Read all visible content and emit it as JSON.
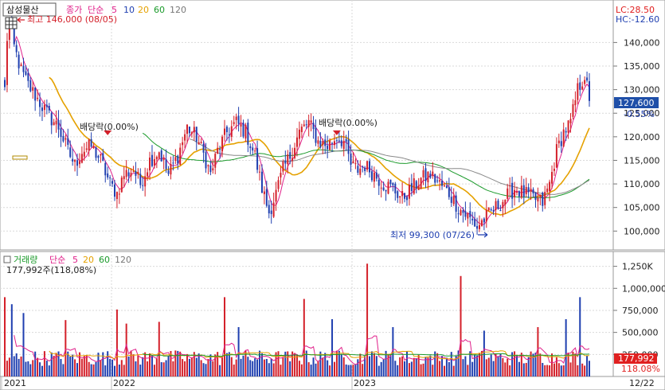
{
  "colors": {
    "up": "#d4202a",
    "down": "#1f3fb0",
    "ma5": "#e0208a",
    "ma20": "#e5a100",
    "ma60": "#1a9a2a",
    "ma120": "#888888",
    "grid": "#d9d9d9",
    "axis_bg": "#ffffff",
    "lc": "#e02020",
    "hc": "#1f3fb0",
    "current_bg": "#1f4fa8",
    "vol_tag_bg": "#e02020"
  },
  "price_panel": {
    "stock_name": "삼성물산",
    "legend": {
      "close": "종가",
      "kind": "단순",
      "periods": [
        "5",
        "10",
        "20",
        "60",
        "120"
      ]
    },
    "limits": {
      "lc": "LC:28.50",
      "hc": "HC:-12.60"
    },
    "high_note": "최고 146,000 (08/05)",
    "low_note": "최저 99,300 (07/26)",
    "dividend_notes": [
      "배당락(0.00%)",
      "배당락(0.00%)"
    ],
    "current_price": "127,600",
    "current_change": "-0.55%"
  },
  "volume_panel": {
    "title": "거래량",
    "legend": {
      "kind": "단순",
      "periods": [
        "5",
        "20",
        "60",
        "120"
      ]
    },
    "summary": "177,992주(118,08%)",
    "current_volume": "177,992",
    "current_ratio": "118.08%"
  },
  "x_axis": {
    "labels": [
      "2021",
      "2022",
      "2023"
    ],
    "end_label": "12/22"
  },
  "chart_data": {
    "type": "candlestick",
    "price_axis": {
      "min": 96000,
      "max": 148000,
      "ticks": [
        100000,
        105000,
        110000,
        115000,
        120000,
        125000,
        130000,
        135000,
        140000
      ]
    },
    "price_tick_labels": [
      "100,000",
      "105,000",
      "110,000",
      "115,000",
      "120,000",
      "125,000",
      "130,000",
      "135,000",
      "140,000"
    ],
    "volume_axis": {
      "min": 0,
      "max": 1400000,
      "ticks": [
        250000,
        500000,
        750000,
        1000000,
        1250000
      ]
    },
    "volume_tick_labels": [
      "250,000",
      "500,000",
      "750,000",
      "1,000,000",
      "1,250K"
    ],
    "close_path": [
      [
        0,
        130000
      ],
      [
        1,
        141000
      ],
      [
        2,
        145000
      ],
      [
        4,
        139000
      ],
      [
        7,
        134000
      ],
      [
        10,
        131000
      ],
      [
        14,
        128000
      ],
      [
        18,
        125000
      ],
      [
        23,
        122000
      ],
      [
        27,
        117000
      ],
      [
        30,
        114000
      ],
      [
        33,
        117000
      ],
      [
        37,
        118000
      ],
      [
        41,
        115000
      ],
      [
        45,
        110000
      ],
      [
        48,
        108000
      ],
      [
        51,
        112000
      ],
      [
        55,
        113000
      ],
      [
        58,
        110000
      ],
      [
        62,
        115000
      ],
      [
        66,
        117000
      ],
      [
        70,
        112000
      ],
      [
        74,
        116000
      ],
      [
        78,
        122000
      ],
      [
        82,
        120000
      ],
      [
        86,
        115000
      ],
      [
        88,
        112000
      ],
      [
        91,
        117000
      ],
      [
        95,
        121000
      ],
      [
        99,
        123000
      ],
      [
        103,
        121000
      ],
      [
        107,
        116000
      ],
      [
        110,
        109000
      ],
      [
        113,
        104000
      ],
      [
        116,
        108000
      ],
      [
        119,
        113000
      ],
      [
        122,
        116000
      ],
      [
        126,
        121000
      ],
      [
        130,
        123000
      ],
      [
        134,
        119000
      ],
      [
        138,
        118000
      ],
      [
        142,
        120000
      ],
      [
        145,
        119000
      ],
      [
        148,
        114000
      ],
      [
        151,
        113000
      ],
      [
        154,
        114000
      ],
      [
        158,
        112000
      ],
      [
        162,
        110000
      ],
      [
        166,
        109000
      ],
      [
        170,
        107000
      ],
      [
        174,
        109000
      ],
      [
        178,
        111000
      ],
      [
        182,
        112000
      ],
      [
        186,
        110000
      ],
      [
        190,
        108000
      ],
      [
        194,
        105000
      ],
      [
        198,
        103000
      ],
      [
        202,
        101000
      ],
      [
        206,
        103000
      ],
      [
        210,
        105000
      ],
      [
        214,
        107000
      ],
      [
        218,
        109000
      ],
      [
        222,
        108000
      ],
      [
        226,
        107000
      ],
      [
        230,
        106000
      ],
      [
        233,
        110000
      ],
      [
        236,
        117000
      ],
      [
        239,
        121000
      ],
      [
        242,
        123000
      ],
      [
        245,
        130000
      ],
      [
        248,
        133000
      ],
      [
        250,
        128000
      ]
    ],
    "ma_periods": [
      5,
      20,
      60,
      120
    ],
    "last_price": 127600,
    "last_volume": 177992,
    "volume_base": 200000,
    "high_point": {
      "index": 2,
      "value": 146000
    },
    "low_point": {
      "index": 202,
      "value": 99300
    },
    "dividend_points": [
      {
        "index": 44,
        "value": 120000
      },
      {
        "index": 142,
        "value": 120000
      }
    ],
    "volume_spikes": [
      {
        "index": 0,
        "value": 900000
      },
      {
        "index": 3,
        "value": 820000
      },
      {
        "index": 8,
        "value": 720000
      },
      {
        "index": 26,
        "value": 640000
      },
      {
        "index": 48,
        "value": 760000
      },
      {
        "index": 52,
        "value": 600000
      },
      {
        "index": 66,
        "value": 620000
      },
      {
        "index": 94,
        "value": 900000
      },
      {
        "index": 100,
        "value": 560000
      },
      {
        "index": 128,
        "value": 880000
      },
      {
        "index": 140,
        "value": 650000
      },
      {
        "index": 155,
        "value": 1280000
      },
      {
        "index": 166,
        "value": 560000
      },
      {
        "index": 195,
        "value": 1140000
      },
      {
        "index": 205,
        "value": 520000
      },
      {
        "index": 228,
        "value": 560000
      },
      {
        "index": 240,
        "value": 650000
      },
      {
        "index": 246,
        "value": 900000
      }
    ]
  }
}
